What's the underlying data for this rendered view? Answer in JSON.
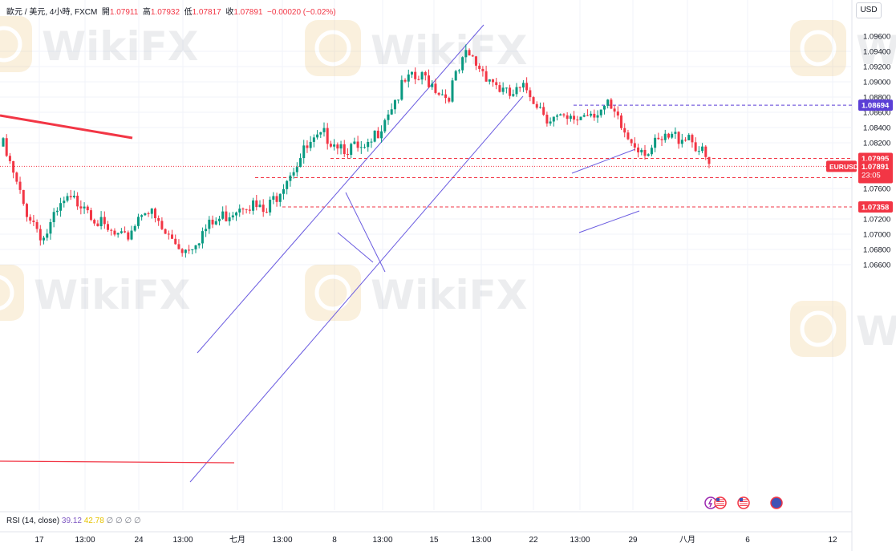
{
  "header": {
    "symbol": "歐元 / 美元, 4小時, FXCM",
    "open_label": "開",
    "open_value": "1.07911",
    "high_label": "高",
    "high_value": "1.07932",
    "low_label": "低",
    "low_value": "1.07817",
    "close_label": "收",
    "close_value": "1.07891",
    "change": "−0.00020 (−0.02%)"
  },
  "currency_button": "USD",
  "watermark": "WikiFX",
  "rsi": {
    "label": "RSI (14, close)",
    "value1": "39.12",
    "value2": "42.78",
    "placeholders": "∅ ∅ ∅ ∅"
  },
  "price_axis": {
    "ticks": [
      "1.09400",
      "1.09200",
      "1.09000",
      "1.08800",
      "1.08600",
      "1.08400",
      "1.08200",
      "1.07600",
      "1.07200",
      "1.07000",
      "1.06800",
      "1.06600"
    ],
    "tick_values": [
      1.094,
      1.092,
      1.09,
      1.088,
      1.086,
      1.084,
      1.082,
      1.076,
      1.072,
      1.07,
      1.068,
      1.066
    ],
    "partial_ticks": [
      "1.09600",
      "1.07400"
    ]
  },
  "time_axis": [
    "17",
    "13:00",
    "24",
    "13:00",
    "七月",
    "13:00",
    "8",
    "13:00",
    "15",
    "13:00",
    "22",
    "13:00",
    "29",
    "13:00",
    "八月",
    "6",
    "12"
  ],
  "levels": [
    {
      "label": "1.08694",
      "value": 1.08694,
      "color": "#5b3fd6",
      "style": "dashed"
    },
    {
      "label": "1.07995",
      "value": 1.07995,
      "color": "#f23645",
      "style": "dashed"
    },
    {
      "label": "1.07742",
      "value": 1.07742,
      "color": "#f23645",
      "style": "dashed"
    },
    {
      "label": "1.07358",
      "value": 1.07358,
      "color": "#f23645",
      "style": "dashed"
    }
  ],
  "current_price": {
    "symbol": "EURUSD",
    "price": "1.07891",
    "countdown": "23:05",
    "value": 1.07891,
    "color": "#f23645"
  },
  "chart_data": {
    "type": "candlestick",
    "instrument": "EUR/USD",
    "timeframe": "4h",
    "ylim": [
      1.065,
      1.097
    ],
    "up_color": "#089981",
    "down_color": "#f23645",
    "close_path": [
      {
        "x": "17",
        "y": 1.0815
      },
      {
        "x": "~18",
        "y": 1.0738
      },
      {
        "x": "~19",
        "y": 1.0695
      },
      {
        "x": "~21",
        "y": 1.074
      },
      {
        "x": "~22",
        "y": 1.0745
      },
      {
        "x": "24",
        "y": 1.0705
      },
      {
        "x": "~25",
        "y": 1.069
      },
      {
        "x": "~26",
        "y": 1.0738
      },
      {
        "x": "~27",
        "y": 1.07
      },
      {
        "x": "~28",
        "y": 1.068
      },
      {
        "x": "~29",
        "y": 1.0705
      },
      {
        "x": "七月",
        "y": 1.0725
      },
      {
        "x": "~2",
        "y": 1.0745
      },
      {
        "x": "~3",
        "y": 1.0725
      },
      {
        "x": "~4",
        "y": 1.0775
      },
      {
        "x": "~5",
        "y": 1.081
      },
      {
        "x": "8",
        "y": 1.083
      },
      {
        "x": "~9",
        "y": 1.0815
      },
      {
        "x": "~10",
        "y": 1.0805
      },
      {
        "x": "~11",
        "y": 1.086
      },
      {
        "x": "~12",
        "y": 1.09
      },
      {
        "x": "15",
        "y": 1.0905
      },
      {
        "x": "~16",
        "y": 1.088
      },
      {
        "x": "~17",
        "y": 1.0935
      },
      {
        "x": "~18",
        "y": 1.091
      },
      {
        "x": "~19",
        "y": 1.088
      },
      {
        "x": "22",
        "y": 1.089
      },
      {
        "x": "~23",
        "y": 1.0855
      },
      {
        "x": "~24",
        "y": 1.0845
      },
      {
        "x": "~25",
        "y": 1.0862
      },
      {
        "x": "~26",
        "y": 1.0865
      },
      {
        "x": "29",
        "y": 1.0825
      },
      {
        "x": "~30",
        "y": 1.081
      },
      {
        "x": "~31",
        "y": 1.0825
      },
      {
        "x": "八月",
        "y": 1.0832
      },
      {
        "x": "~2",
        "y": 1.0789
      }
    ]
  },
  "event_icons": [
    "lightning-icon",
    "us-flag-icon",
    "us-flag-icon",
    "globe-icon"
  ]
}
